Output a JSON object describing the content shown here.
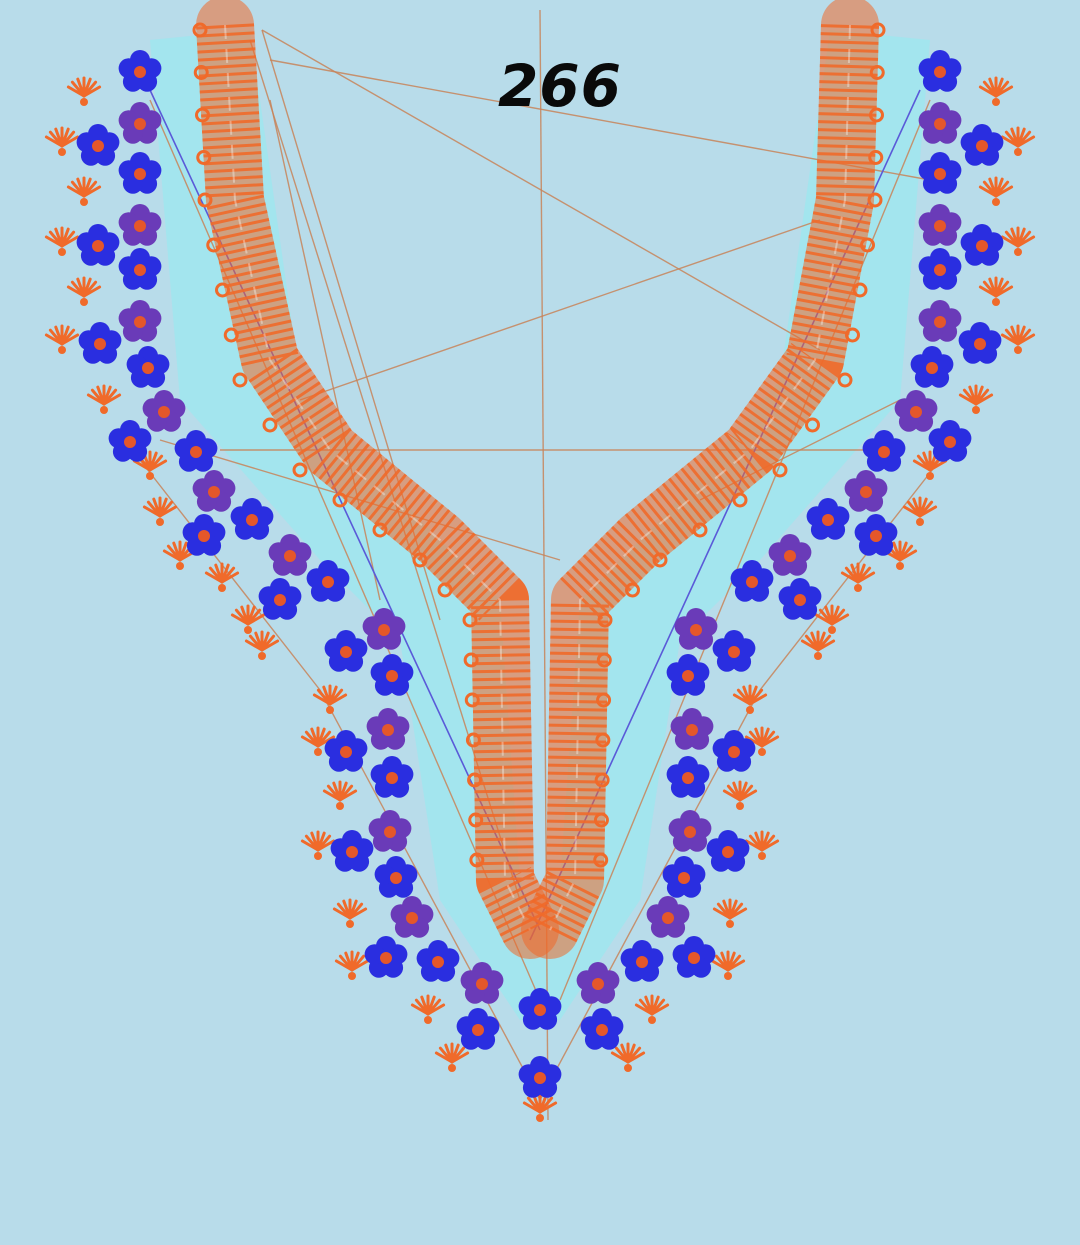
{
  "design": {
    "number": "266"
  },
  "colors": {
    "background": "#b8dcea",
    "inner_fill": "#9fe6ee",
    "orange": "#f06a2a",
    "flower_blue": "#2a2ee0",
    "flower_purple": "#6a3bb8",
    "flower_center": "#e5572a",
    "stitch_line": "#c8845a",
    "stitch_blue": "#5a5ad8"
  },
  "icons": {
    "flower": "flower-motif",
    "leaf": "leaf-motif"
  }
}
